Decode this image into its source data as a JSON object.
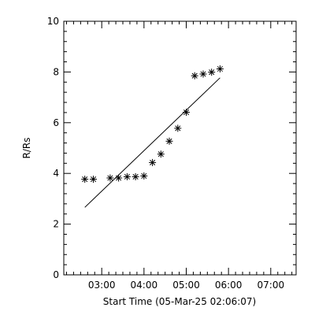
{
  "chart_data": {
    "type": "scatter",
    "xlabel": "Start Time (05-Mar-25 02:06:07)",
    "ylabel": "R/Rs",
    "xlim": [
      "02:06:07",
      "07:36:00"
    ],
    "ylim": [
      0,
      10
    ],
    "x_ticks": [
      "03:00",
      "04:00",
      "05:00",
      "06:00",
      "07:00"
    ],
    "y_ticks": [
      "0",
      "2",
      "4",
      "6",
      "8",
      "10"
    ],
    "grid": false,
    "marker": "asterisk",
    "series": [
      {
        "type": "scatter",
        "x": [
          "02:36",
          "02:48",
          "03:12",
          "03:24",
          "03:36",
          "03:48",
          "04:00",
          "04:12",
          "04:24",
          "04:36",
          "04:48",
          "05:00",
          "05:12",
          "05:24",
          "05:36",
          "05:48"
        ],
        "y": [
          3.77,
          3.77,
          3.82,
          3.82,
          3.87,
          3.87,
          3.9,
          4.43,
          4.76,
          5.27,
          5.78,
          6.41,
          7.85,
          7.92,
          7.99,
          8.12
        ]
      },
      {
        "type": "line",
        "x": [
          "02:36",
          "05:48"
        ],
        "y": [
          2.66,
          7.77
        ]
      }
    ]
  }
}
